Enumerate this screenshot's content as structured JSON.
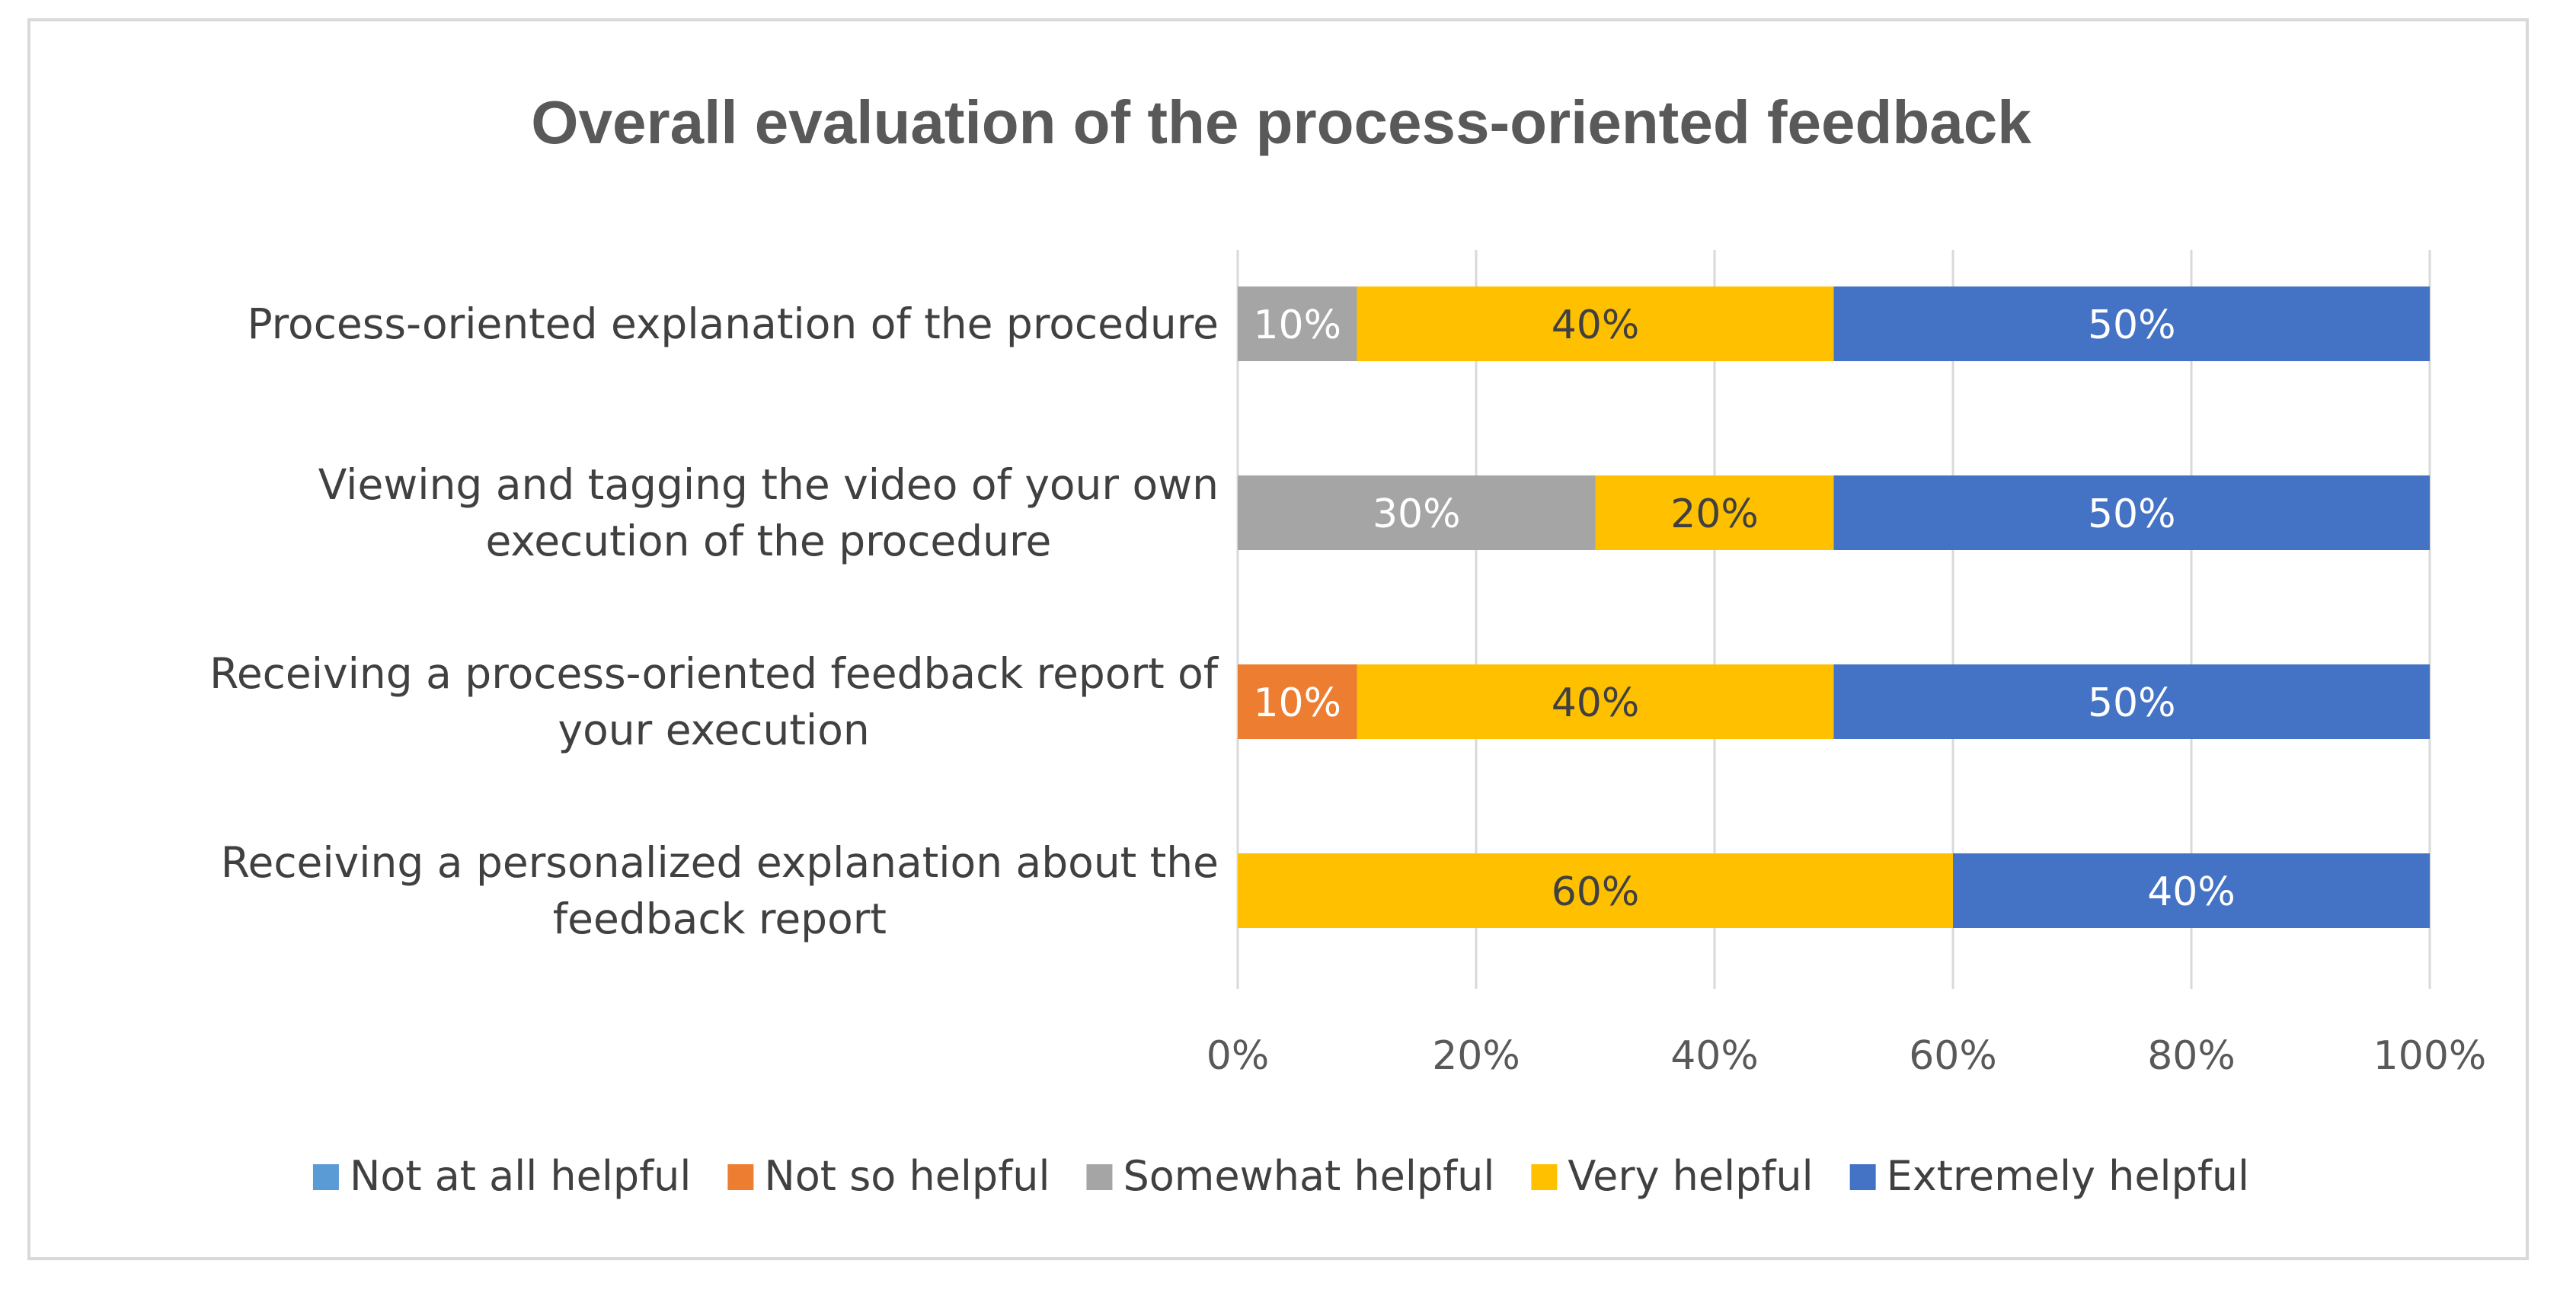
{
  "chart_data": {
    "type": "bar",
    "orientation": "horizontal",
    "stacked": "100%",
    "title": "Overall evaluation of the process-oriented feedback",
    "categories": [
      [
        "Process-oriented explanation of the procedure"
      ],
      [
        "Viewing and tagging the video of your own",
        "execution of the procedure"
      ],
      [
        "Receiving a process-oriented feedback report of",
        "your execution"
      ],
      [
        "Receiving a personalized explanation about the",
        "feedback report"
      ]
    ],
    "series": [
      {
        "name": "Not at all helpful",
        "color": "#5b9bd5",
        "values": [
          0,
          0,
          0,
          0
        ]
      },
      {
        "name": "Not so helpful",
        "color": "#ed7d31",
        "values": [
          0,
          0,
          10,
          0
        ]
      },
      {
        "name": "Somewhat helpful",
        "color": "#a5a5a5",
        "values": [
          10,
          30,
          0,
          0
        ]
      },
      {
        "name": "Very helpful",
        "color": "#ffc000",
        "values": [
          40,
          20,
          40,
          60
        ]
      },
      {
        "name": "Extremely helpful",
        "color": "#4472c4",
        "values": [
          50,
          50,
          50,
          40
        ]
      }
    ],
    "value_suffix": "%",
    "xlim": [
      0,
      100
    ],
    "xticks": [
      "0%",
      "20%",
      "40%",
      "60%",
      "80%",
      "100%"
    ],
    "grid": true,
    "legend": "bottom"
  }
}
